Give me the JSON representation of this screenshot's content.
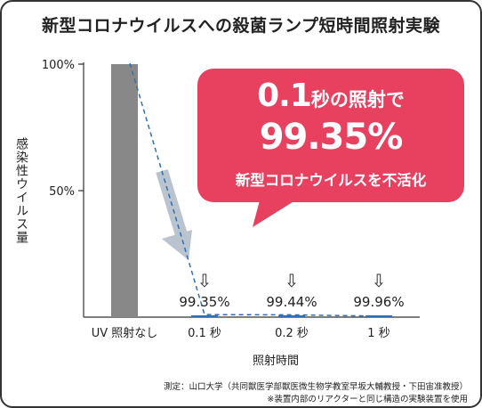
{
  "chart_data": {
    "type": "bar",
    "title": "新型コロナウイルスへの殺菌ランプ短時間照射実験",
    "ylabel": "感染性ウイルス量",
    "xlabel": "照射時間",
    "ylim": [
      0,
      100
    ],
    "yticks": [
      "100%",
      "50%"
    ],
    "ytick_values": [
      100,
      50
    ],
    "categories": [
      "UV 照射なし",
      "0.1 秒",
      "0.2 秒",
      "1 秒"
    ],
    "values": [
      100,
      0.65,
      0.56,
      0.04
    ],
    "reduction_labels": [
      "",
      "99.35%",
      "99.44%",
      "99.96%"
    ],
    "reduction_arrow": "⇩",
    "colors": {
      "bar": "#888888",
      "trend_line": "#2f6fb6",
      "arrow": "#b9c4cf",
      "callout": "#e8415f"
    },
    "grid": false
  },
  "callout": {
    "time": "0.1",
    "suffix": "秒の照射で",
    "percent": "99.35%",
    "text": "新型コロナウイルスを不活化"
  },
  "footer": {
    "source": "測定：山口大学（共同獣医学部獣医微生物学教室早坂大輔教授・下田宙准教授）",
    "note": "※装置内部のリアクターと同じ構造の実験装置を使用"
  }
}
